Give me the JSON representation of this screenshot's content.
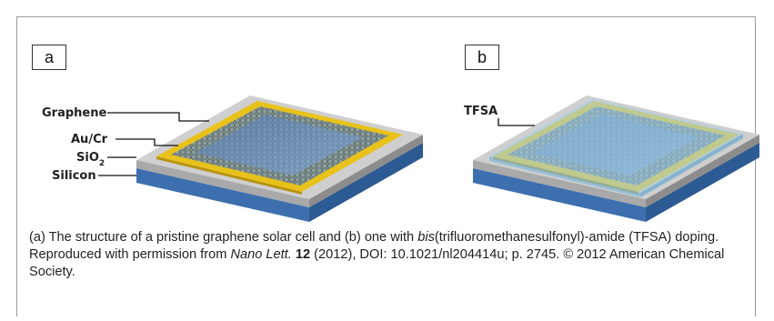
{
  "panels": {
    "a": "a",
    "b": "b"
  },
  "layers": {
    "graphene": "Graphene",
    "aucr": "Au/Cr",
    "sio2_base": "SiO",
    "sio2_sub": "2",
    "silicon": "Silicon",
    "tfsa": "TFSA"
  },
  "caption": {
    "part1": "(a) The structure of a pristine graphene solar cell and (b) one with ",
    "italic1": "bis",
    "part2": "(trifluoromethanesulfonyl)-amide (TFSA) doping. Reproduced with permission from ",
    "journal": "Nano Lett.",
    "part3": " ",
    "volume": "12",
    "part4": " (2012), DOI: 10.1021/nl204414u; p. 2745. © 2012 American Chemical Society."
  },
  "colors": {
    "silicon": "#4e86c4",
    "sio2": "#b9b9b9",
    "gold": "#e8c21a",
    "graphene": "#6f8fb0",
    "tfsa": "#9ed0ee"
  }
}
